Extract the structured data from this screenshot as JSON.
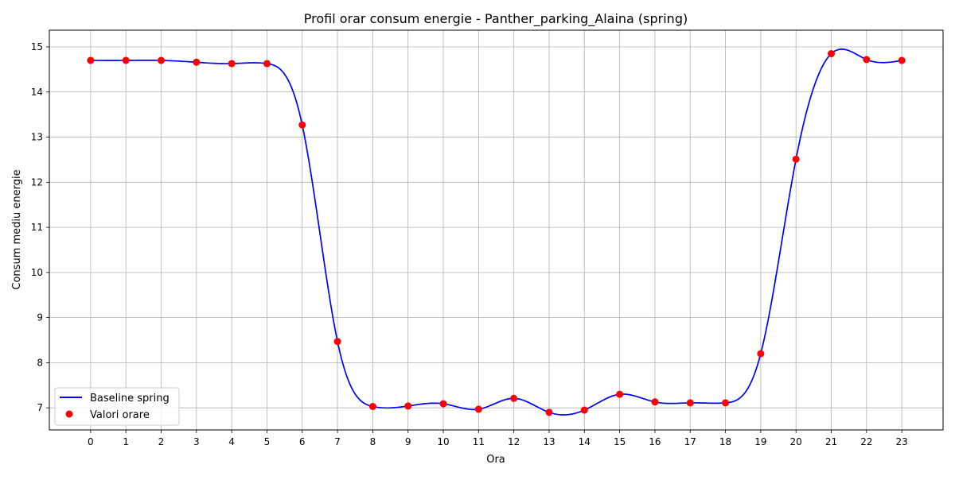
{
  "chart_data": {
    "type": "line",
    "title": "Profil orar consum energie - Panther_parking_Alaina (spring)",
    "xlabel": "Ora",
    "ylabel": "Consum mediu energie",
    "x": [
      0,
      1,
      2,
      3,
      4,
      5,
      6,
      7,
      8,
      9,
      10,
      11,
      12,
      13,
      14,
      15,
      16,
      17,
      18,
      19,
      20,
      21,
      22,
      23
    ],
    "x_ticks": [
      "0",
      "1",
      "2",
      "3",
      "4",
      "5",
      "6",
      "7",
      "8",
      "9",
      "10",
      "11",
      "12",
      "13",
      "14",
      "15",
      "16",
      "17",
      "18",
      "19",
      "20",
      "21",
      "22",
      "23"
    ],
    "y_ticks": [
      "7",
      "8",
      "9",
      "10",
      "11",
      "12",
      "13",
      "14",
      "15"
    ],
    "xlim": [
      -1.17,
      24.17
    ],
    "ylim": [
      6.51,
      15.37
    ],
    "grid": true,
    "legend_position": "lower-left",
    "series": [
      {
        "name": "Baseline spring",
        "kind": "smooth-line",
        "color": "#0000ff",
        "values": [
          14.7,
          14.7,
          14.7,
          14.66,
          14.63,
          14.63,
          13.27,
          8.47,
          7.03,
          7.04,
          7.09,
          6.97,
          7.21,
          6.9,
          6.95,
          7.3,
          7.13,
          7.11,
          7.11,
          8.2,
          12.51,
          14.85,
          14.72,
          14.7
        ]
      },
      {
        "name": "Valori orare",
        "kind": "scatter",
        "color": "#ff0000",
        "values": [
          14.7,
          14.7,
          14.7,
          14.66,
          14.63,
          14.63,
          13.27,
          8.47,
          7.03,
          7.04,
          7.09,
          6.97,
          7.21,
          6.9,
          6.95,
          7.3,
          7.13,
          7.11,
          7.11,
          8.2,
          12.51,
          14.85,
          14.72,
          14.7
        ]
      }
    ]
  }
}
